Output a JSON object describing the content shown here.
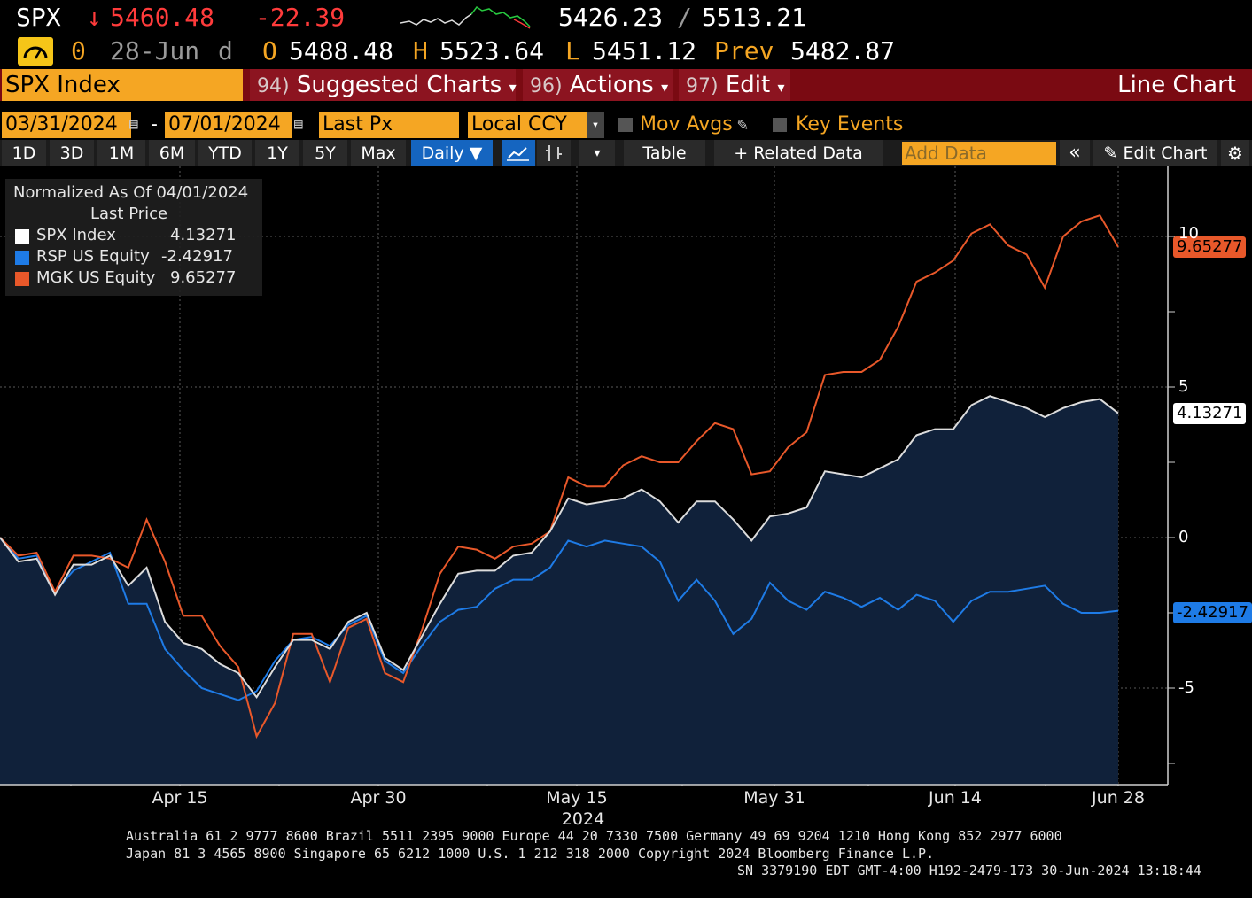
{
  "quote": {
    "ticker": "SPX",
    "arrow": "↓",
    "last": "5460.48",
    "change": "-22.39",
    "range_low": "5426.23",
    "range_sep": "/",
    "range_high": "5513.21",
    "zero": "0",
    "date": "28-Jun",
    "date_suffix": "d",
    "open_label": "O",
    "open": "5488.48",
    "high_label": "H",
    "high": "5523.64",
    "low_label": "L",
    "low": "5451.12",
    "prev_label": "Prev",
    "prev": "5482.87"
  },
  "titlebar": {
    "security": "SPX Index",
    "menu1_num": "94)",
    "menu1": "Suggested Charts",
    "menu2_num": "96)",
    "menu2": "Actions",
    "menu3_num": "97)",
    "menu3": "Edit",
    "dropdown_arrow": "▾",
    "title": "Line Chart"
  },
  "settings": {
    "start_date": "03/31/2024",
    "dash": "-",
    "end_date": "07/01/2024",
    "field": "Last Px",
    "currency": "Local CCY",
    "mov_avgs": "Mov Avgs",
    "key_events": "Key Events"
  },
  "toolbar": {
    "periods": [
      "1D",
      "3D",
      "1M",
      "6M",
      "YTD",
      "1Y",
      "5Y",
      "Max"
    ],
    "frequency": "Daily ▼",
    "table": "Table",
    "related": "+ Related Data",
    "add_data_placeholder": "Add Data",
    "collapse": "«",
    "edit_chart": "Edit Chart"
  },
  "legend": {
    "title": "Normalized As Of 04/01/2024",
    "subtitle": "Last Price",
    "items": [
      {
        "name": "SPX Index",
        "value": "4.13271",
        "color": "#ffffff"
      },
      {
        "name": "RSP US Equity",
        "value": "-2.42917",
        "color": "#1e7be6"
      },
      {
        "name": "MGK US Equity",
        "value": "9.65277",
        "color": "#e8582a"
      }
    ]
  },
  "chart_data": {
    "type": "line",
    "title": "",
    "xlabel": "2024",
    "ylabel": "",
    "x_ticks": [
      "Apr 15",
      "Apr 30",
      "May 15",
      "May 31",
      "Jun 14",
      "Jun 28"
    ],
    "y_ticks": [
      "10",
      "5",
      "0",
      "-5"
    ],
    "ylim": [
      -7.5,
      12.5
    ],
    "grid": true,
    "legend_position": "top-left",
    "n_points": 62,
    "series": [
      {
        "name": "SPX Index",
        "color": "#dcdcdc",
        "fill": "#10213a",
        "values": [
          0,
          -0.8,
          -0.7,
          -1.9,
          -0.9,
          -0.9,
          -0.6,
          -1.6,
          -1.0,
          -2.8,
          -3.5,
          -3.7,
          -4.2,
          -4.5,
          -5.3,
          -4.3,
          -3.4,
          -3.4,
          -3.7,
          -2.8,
          -2.5,
          -4.0,
          -4.4,
          -3.3,
          -2.2,
          -1.2,
          -1.1,
          -1.1,
          -0.6,
          -0.5,
          0.2,
          1.3,
          1.1,
          1.2,
          1.3,
          1.6,
          1.2,
          0.5,
          1.2,
          1.2,
          0.6,
          -0.1,
          0.7,
          0.8,
          1.0,
          2.2,
          2.1,
          2.0,
          2.3,
          2.6,
          3.4,
          3.6,
          3.6,
          4.4,
          4.7,
          4.5,
          4.3,
          4.0,
          4.3,
          4.5,
          4.6,
          4.13
        ]
      },
      {
        "name": "RSP US Equity",
        "color": "#1e7be6",
        "values": [
          0,
          -0.7,
          -0.6,
          -1.8,
          -1.1,
          -0.8,
          -0.5,
          -2.2,
          -2.2,
          -3.7,
          -4.4,
          -5.0,
          -5.2,
          -5.4,
          -5.1,
          -4.1,
          -3.4,
          -3.3,
          -3.6,
          -2.9,
          -2.6,
          -4.1,
          -4.5,
          -3.6,
          -2.8,
          -2.4,
          -2.3,
          -1.7,
          -1.4,
          -1.4,
          -1.0,
          -0.1,
          -0.3,
          -0.1,
          -0.2,
          -0.3,
          -0.8,
          -2.1,
          -1.4,
          -2.1,
          -3.2,
          -2.7,
          -1.5,
          -2.1,
          -2.4,
          -1.8,
          -2.0,
          -2.3,
          -2.0,
          -2.4,
          -1.9,
          -2.1,
          -2.8,
          -2.1,
          -1.8,
          -1.8,
          -1.7,
          -1.6,
          -2.2,
          -2.5,
          -2.5,
          -2.43
        ]
      },
      {
        "name": "MGK US Equity",
        "color": "#e8582a",
        "values": [
          0,
          -0.6,
          -0.5,
          -1.8,
          -0.6,
          -0.6,
          -0.7,
          -1.0,
          0.6,
          -0.8,
          -2.6,
          -2.6,
          -3.6,
          -4.3,
          -6.6,
          -5.5,
          -3.2,
          -3.2,
          -4.8,
          -3.0,
          -2.7,
          -4.5,
          -4.8,
          -3.1,
          -1.2,
          -0.3,
          -0.4,
          -0.7,
          -0.3,
          -0.2,
          0.2,
          2.0,
          1.7,
          1.7,
          2.4,
          2.7,
          2.5,
          2.5,
          3.2,
          3.8,
          3.6,
          2.1,
          2.2,
          3.0,
          3.5,
          5.4,
          5.5,
          5.5,
          5.9,
          7.0,
          8.5,
          8.8,
          9.2,
          10.1,
          10.4,
          9.7,
          9.4,
          8.3,
          10.0,
          10.5,
          10.7,
          9.65
        ]
      }
    ]
  },
  "footer": {
    "line1": "Australia 61 2 9777 8600 Brazil 5511 2395 9000 Europe 44 20 7330 7500 Germany 49 69 9204 1210 Hong Kong 852 2977 6000",
    "line2": "Japan 81 3 4565 8900      Singapore 65 6212 1000      U.S. 1 212 318 2000         Copyright 2024 Bloomberg Finance L.P.",
    "line3": "SN 3379190 EDT  GMT-4:00 H192-2479-173 30-Jun-2024 13:18:44"
  }
}
